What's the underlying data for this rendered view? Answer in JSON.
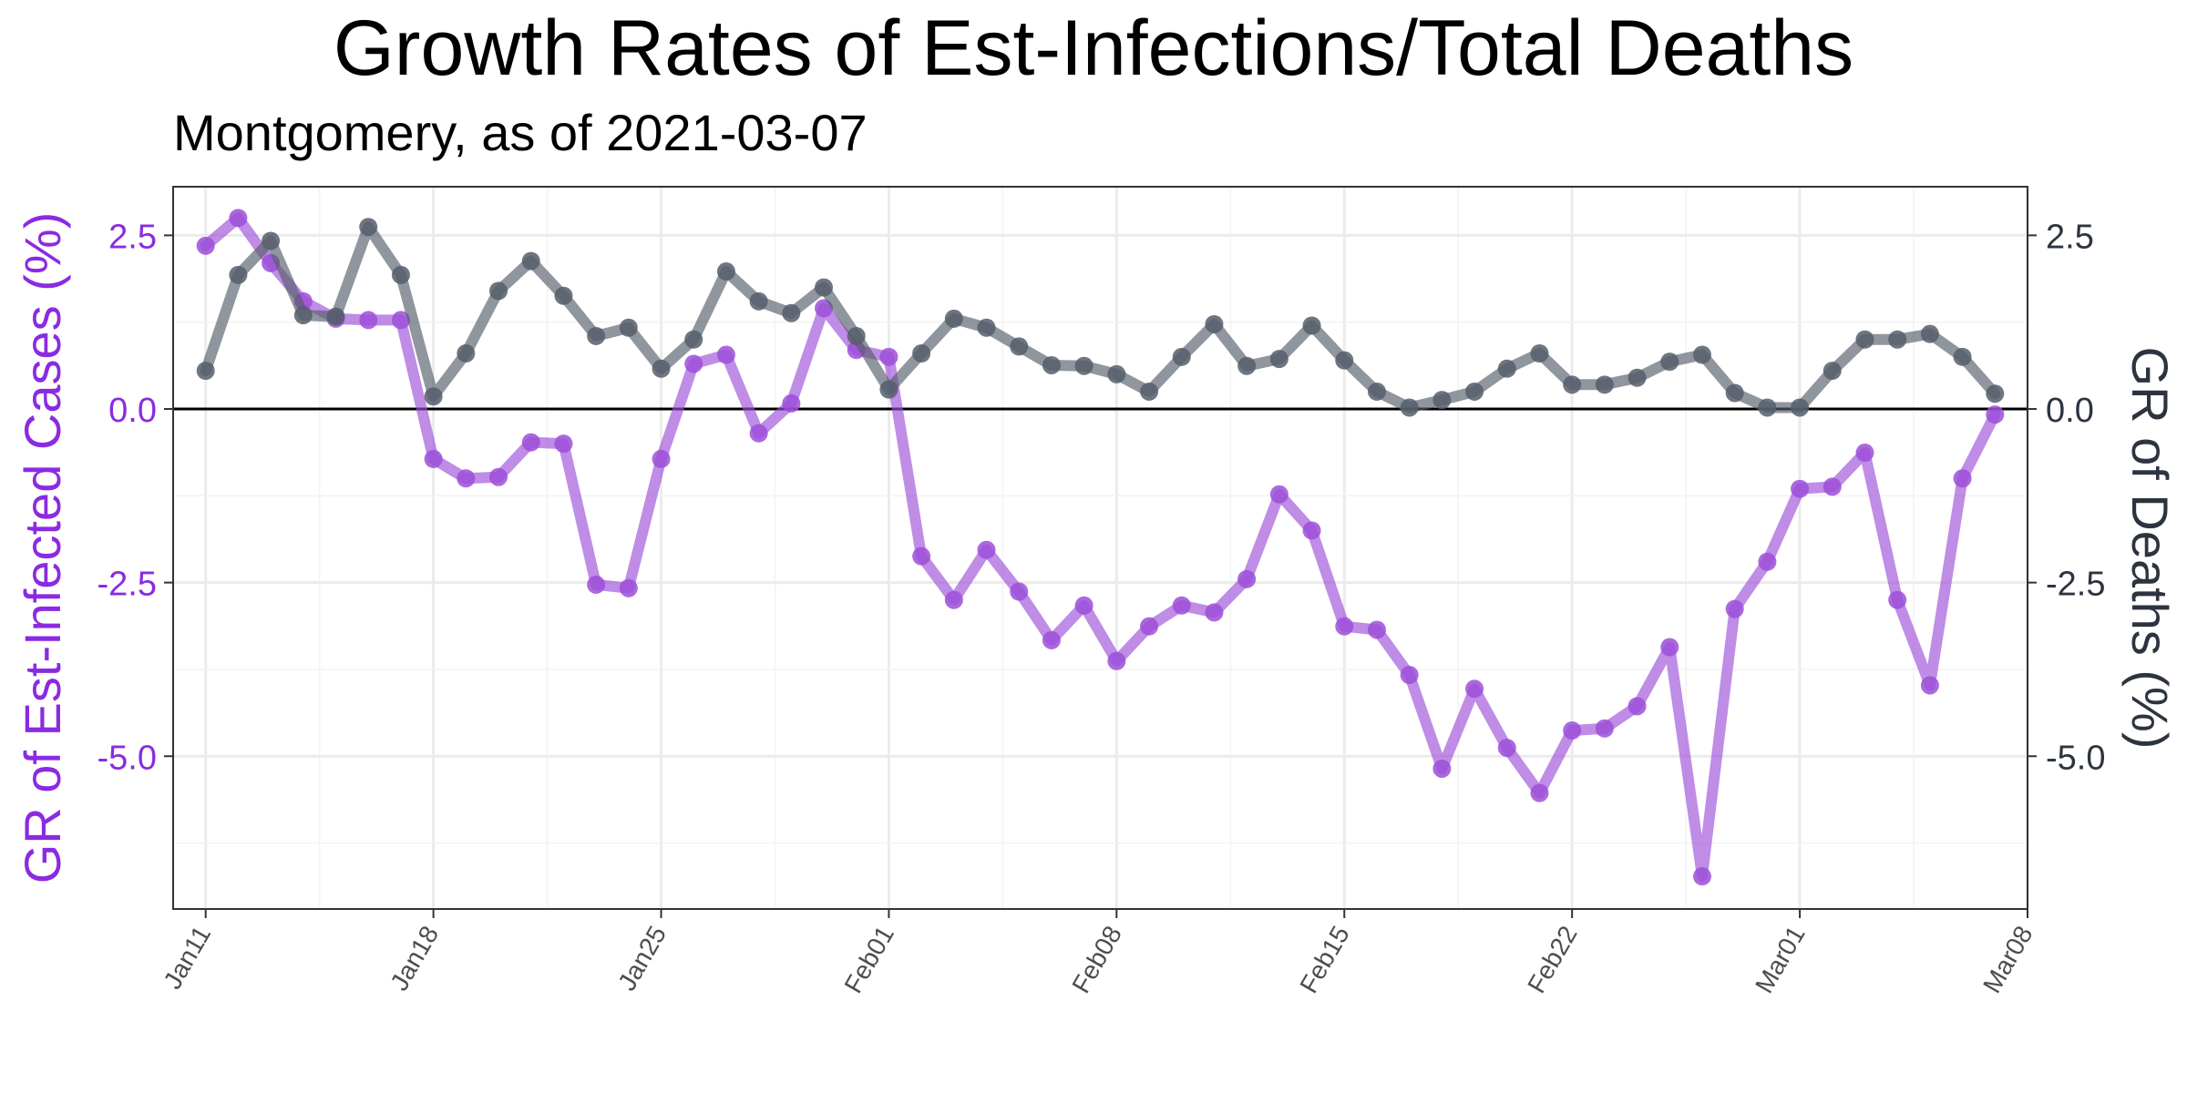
{
  "chart_data": {
    "type": "line",
    "title": "Growth Rates of Est-Infections/Total Deaths",
    "subtitle": "Montgomery, as of 2021-03-07",
    "ylabel_left": "GR of Est-Infected Cases (%)",
    "ylabel_right": "GR of Deaths (%)",
    "xlabel": "",
    "ylim": [
      -7.2,
      3.2
    ],
    "xlim": [
      "2021-01-10",
      "2021-03-08"
    ],
    "y_ticks": [
      2.5,
      0.0,
      -2.5,
      -5.0
    ],
    "y_tick_labels": [
      "2.5",
      "0.0",
      "-2.5",
      "-5.0"
    ],
    "x_ticks": [
      "2021-01-11",
      "2021-01-18",
      "2021-01-25",
      "2021-02-01",
      "2021-02-08",
      "2021-02-15",
      "2021-02-22",
      "2021-03-01",
      "2021-03-08"
    ],
    "x_tick_labels": [
      "Jan11",
      "Jan18",
      "Jan25",
      "Feb01",
      "Feb08",
      "Feb15",
      "Feb22",
      "Mar01",
      "Mar08"
    ],
    "grid": true,
    "zero_line": true,
    "colors": {
      "infections": "#9c4fd8",
      "deaths": "#555e6a",
      "left_axis_text": "#8a2be2",
      "right_axis_text": "#2d3440"
    },
    "series": [
      {
        "key": "infections",
        "start_date": "2021-01-11",
        "values": [
          2.35,
          2.75,
          2.1,
          1.55,
          1.3,
          1.28,
          1.28,
          -0.72,
          -1.0,
          -0.98,
          -0.48,
          -0.5,
          -2.53,
          -2.58,
          -0.72,
          0.65,
          0.78,
          -0.35,
          0.08,
          1.45,
          0.85,
          0.75,
          -2.12,
          -2.75,
          -2.03,
          -2.63,
          -3.33,
          -2.83,
          -3.63,
          -3.13,
          -2.83,
          -2.93,
          -2.45,
          -1.23,
          -1.75,
          -3.13,
          -3.18,
          -3.83,
          -5.18,
          -4.03,
          -4.88,
          -5.53,
          -4.63,
          -4.6,
          -4.28,
          -3.43,
          -6.73,
          -2.88,
          -2.2,
          -1.15,
          -1.12,
          -0.63,
          -2.75,
          -3.98,
          -1.0,
          -0.08
        ]
      },
      {
        "key": "deaths",
        "start_date": "2021-01-11",
        "values": [
          0.55,
          1.93,
          2.42,
          1.35,
          1.33,
          2.62,
          1.93,
          0.18,
          0.8,
          1.7,
          2.13,
          1.63,
          1.05,
          1.17,
          0.58,
          1.0,
          1.98,
          1.55,
          1.38,
          1.75,
          1.05,
          0.28,
          0.8,
          1.3,
          1.17,
          0.9,
          0.63,
          0.62,
          0.5,
          0.25,
          0.75,
          1.22,
          0.62,
          0.72,
          1.2,
          0.7,
          0.25,
          0.02,
          0.13,
          0.25,
          0.58,
          0.8,
          0.35,
          0.35,
          0.45,
          0.68,
          0.78,
          0.23,
          0.02,
          0.02,
          0.55,
          1.0,
          1.0,
          1.08,
          0.75,
          0.22
        ]
      }
    ]
  }
}
